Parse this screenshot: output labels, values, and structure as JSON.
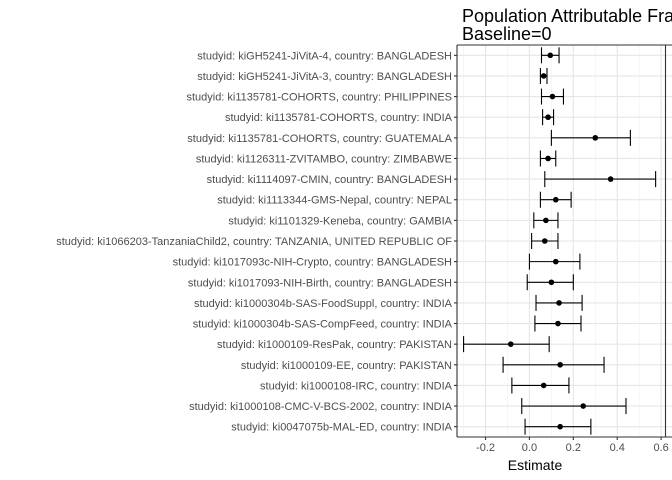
{
  "chart_data": {
    "type": "scatter",
    "subtype": "forest-plot-with-error-bars",
    "title": "Population Attributable Fra",
    "subtitle": "Baseline=0",
    "xlabel": "Estimate",
    "ylabel": "",
    "xlim": [
      -0.33,
      0.62
    ],
    "xticks": [
      -0.2,
      0.0,
      0.2,
      0.4,
      0.6
    ],
    "xtick_labels": [
      "-0.2",
      "0.0",
      "0.2",
      "0.4",
      "0.6"
    ],
    "grid": true,
    "legend": "none",
    "point_color": "#000000",
    "rows": [
      {
        "label": "studyid: kiGH5241-JiVitA-4, country: BANGLADESH",
        "estimate": 0.095,
        "lower": 0.055,
        "upper": 0.135
      },
      {
        "label": "studyid: kiGH5241-JiVitA-3, country: BANGLADESH",
        "estimate": 0.065,
        "lower": 0.05,
        "upper": 0.08
      },
      {
        "label": "studyid: ki1135781-COHORTS, country: PHILIPPINES",
        "estimate": 0.105,
        "lower": 0.055,
        "upper": 0.155
      },
      {
        "label": "studyid: ki1135781-COHORTS, country: INDIA",
        "estimate": 0.085,
        "lower": 0.06,
        "upper": 0.11
      },
      {
        "label": "studyid: ki1135781-COHORTS, country: GUATEMALA",
        "estimate": 0.3,
        "lower": 0.1,
        "upper": 0.46
      },
      {
        "label": "studyid: ki1126311-ZVITAMBO, country: ZIMBABWE",
        "estimate": 0.085,
        "lower": 0.05,
        "upper": 0.12
      },
      {
        "label": "studyid: ki1114097-CMIN, country: BANGLADESH",
        "estimate": 0.37,
        "lower": 0.07,
        "upper": 0.575
      },
      {
        "label": "studyid: ki1113344-GMS-Nepal, country: NEPAL",
        "estimate": 0.12,
        "lower": 0.05,
        "upper": 0.19
      },
      {
        "label": "studyid: ki1101329-Keneba, country: GAMBIA",
        "estimate": 0.075,
        "lower": 0.02,
        "upper": 0.13
      },
      {
        "label": "studyid: ki1066203-TanzaniaChild2, country: TANZANIA, UNITED REPUBLIC OF",
        "estimate": 0.07,
        "lower": 0.01,
        "upper": 0.13
      },
      {
        "label": "studyid: ki1017093c-NIH-Crypto, country: BANGLADESH",
        "estimate": 0.12,
        "lower": 0.0,
        "upper": 0.23
      },
      {
        "label": "studyid: ki1017093-NIH-Birth, country: BANGLADESH",
        "estimate": 0.1,
        "lower": -0.01,
        "upper": 0.2
      },
      {
        "label": "studyid: ki1000304b-SAS-FoodSuppl, country: INDIA",
        "estimate": 0.135,
        "lower": 0.03,
        "upper": 0.24
      },
      {
        "label": "studyid: ki1000304b-SAS-CompFeed, country: INDIA",
        "estimate": 0.13,
        "lower": 0.025,
        "upper": 0.235
      },
      {
        "label": "studyid: ki1000109-ResPak, country: PAKISTAN",
        "estimate": -0.085,
        "lower": -0.3,
        "upper": 0.09
      },
      {
        "label": "studyid: ki1000109-EE, country: PAKISTAN",
        "estimate": 0.14,
        "lower": -0.12,
        "upper": 0.34
      },
      {
        "label": "studyid: ki1000108-IRC, country: INDIA",
        "estimate": 0.065,
        "lower": -0.08,
        "upper": 0.18
      },
      {
        "label": "studyid: ki1000108-CMC-V-BCS-2002, country: INDIA",
        "estimate": 0.245,
        "lower": -0.035,
        "upper": 0.44
      },
      {
        "label": "studyid: ki0047075b-MAL-ED, country: INDIA",
        "estimate": 0.14,
        "lower": -0.02,
        "upper": 0.28
      }
    ]
  }
}
